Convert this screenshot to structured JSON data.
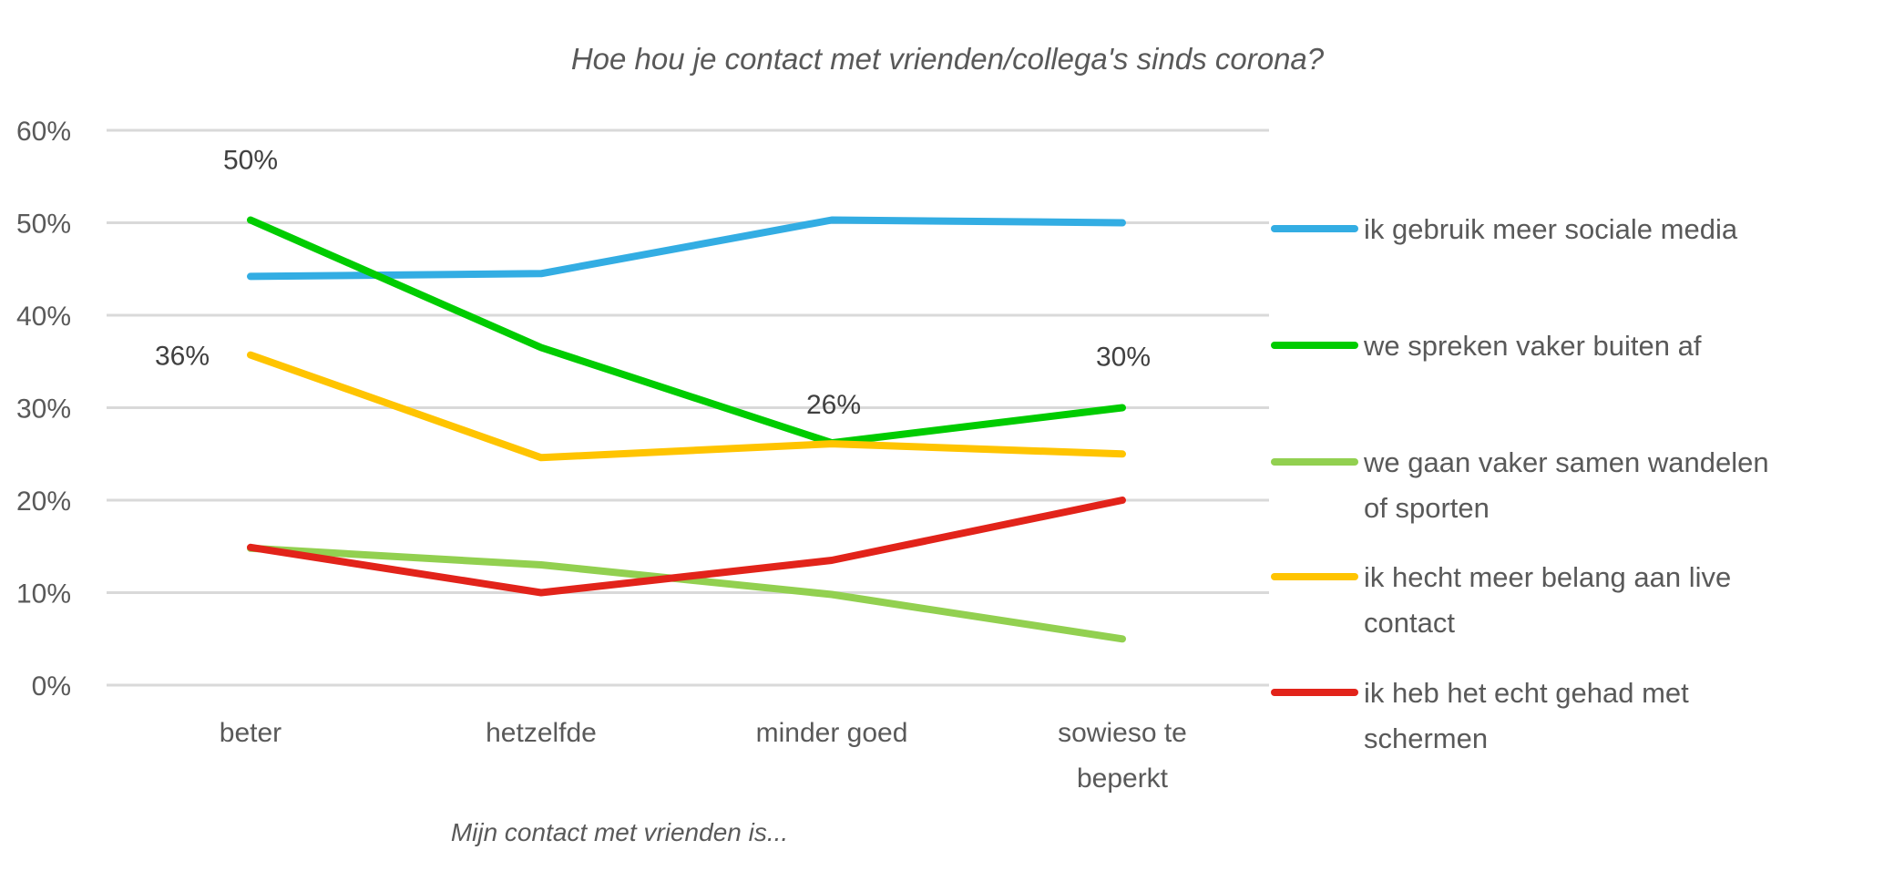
{
  "chart_data": {
    "type": "line",
    "title": "Hoe hou je contact met vrienden/collega's sinds corona?",
    "xlabel": "Mijn contact met vrienden is...",
    "ylabel": "",
    "categories": [
      [
        "beter"
      ],
      [
        "hetzelfde"
      ],
      [
        "minder goed"
      ],
      [
        "sowieso te",
        "beperkt"
      ]
    ],
    "category_labels": [
      "beter",
      "hetzelfde",
      "minder goed",
      "sowieso te beperkt"
    ],
    "ylim": [
      0,
      60
    ],
    "yticks": [
      0,
      10,
      20,
      30,
      40,
      50,
      60
    ],
    "ytick_labels": [
      "0%",
      "10%",
      "20%",
      "30%",
      "40%",
      "50%",
      "60%"
    ],
    "grid": true,
    "legend_position": "right",
    "series": [
      {
        "name": "ik gebruik meer sociale media",
        "legend_lines": [
          "ik gebruik meer sociale media"
        ],
        "color": "#33ADE3",
        "values": [
          44.2,
          44.5,
          50.3,
          50.0
        ]
      },
      {
        "name": "we spreken vaker buiten af",
        "legend_lines": [
          "we spreken vaker buiten af"
        ],
        "color": "#00CC00",
        "values": [
          50.3,
          36.5,
          26.2,
          30.0
        ]
      },
      {
        "name": "we gaan vaker samen wandelen of sporten",
        "legend_lines": [
          "we gaan vaker samen wandelen",
          "of sporten"
        ],
        "color": "#92D050",
        "values": [
          14.8,
          13.0,
          9.8,
          5.0
        ]
      },
      {
        "name": "ik hecht meer belang aan live contact",
        "legend_lines": [
          "ik hecht meer belang aan live",
          "contact"
        ],
        "color": "#FFC400",
        "values": [
          35.7,
          24.6,
          26.1,
          25.0
        ]
      },
      {
        "name": "ik heb het echt gehad met schermen",
        "legend_lines": [
          "ik heb het echt gehad met",
          "schermen"
        ],
        "color": "#E2231A",
        "values": [
          14.9,
          10.0,
          13.5,
          20.0
        ]
      }
    ],
    "data_labels": [
      {
        "text": "50%",
        "series": 1,
        "category": 0
      },
      {
        "text": "36%",
        "series": 3,
        "category": 0
      },
      {
        "text": "26%",
        "series": 1,
        "category": 2
      },
      {
        "text": "30%",
        "series": 1,
        "category": 3
      }
    ]
  }
}
